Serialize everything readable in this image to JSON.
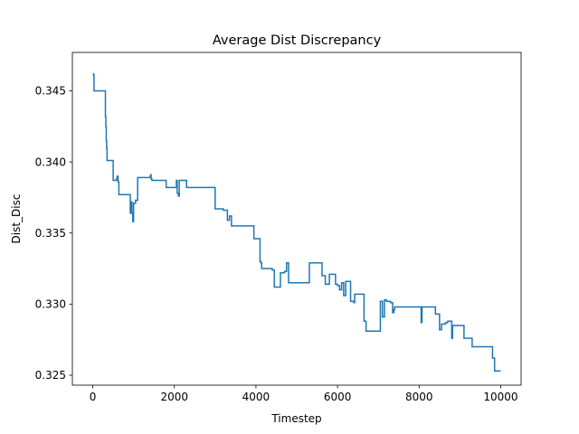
{
  "chart_data": {
    "type": "line",
    "title": "Average Dist Discrepancy",
    "xlabel": "Timestep",
    "ylabel": "Dist_Disc",
    "xlim": [
      -500,
      10500
    ],
    "ylim": [
      0.3243,
      0.3477
    ],
    "xticks": [
      0,
      2000,
      4000,
      6000,
      8000,
      10000
    ],
    "xtick_labels": [
      "0",
      "2000",
      "4000",
      "6000",
      "8000",
      "10000"
    ],
    "yticks": [
      0.325,
      0.33,
      0.335,
      0.34,
      0.345
    ],
    "ytick_labels": [
      "0.325",
      "0.330",
      "0.335",
      "0.340",
      "0.345"
    ],
    "grid": false,
    "line_color": "#1f77b4",
    "series": [
      {
        "step": "post",
        "x": [
          0,
          20,
          30,
          300,
          310,
          320,
          330,
          340,
          350,
          500,
          580,
          600,
          620,
          640,
          920,
          940,
          960,
          980,
          1000,
          1050,
          1100,
          1400,
          1410,
          1420,
          1430,
          1450,
          1800,
          2000,
          2050,
          2070,
          2100,
          2120,
          2150,
          2300,
          3000,
          3200,
          3280,
          3300,
          3350,
          3400,
          3950,
          4100,
          4120,
          4140,
          4400,
          4450,
          4600,
          4700,
          4750,
          4800,
          5300,
          5310,
          5600,
          5620,
          5700,
          5800,
          5950,
          6000,
          6050,
          6100,
          6150,
          6200,
          6300,
          6320,
          6400,
          6420,
          6520,
          6650,
          6700,
          6750,
          7000,
          7050,
          7100,
          7150,
          7200,
          7300,
          7350,
          7380,
          7400,
          7420,
          8000,
          8050,
          8070,
          8100,
          8400,
          8500,
          8550,
          8650,
          8700,
          8800,
          8820,
          8900,
          9100,
          9300,
          9700,
          9800,
          9850,
          10000
        ],
        "values": [
          0.3462,
          0.3461,
          0.345,
          0.345,
          0.3432,
          0.3425,
          0.3415,
          0.341,
          0.3401,
          0.3387,
          0.3388,
          0.339,
          0.3386,
          0.3377,
          0.3364,
          0.3372,
          0.3364,
          0.3358,
          0.3371,
          0.3373,
          0.3389,
          0.3389,
          0.339,
          0.3391,
          0.3388,
          0.3387,
          0.3382,
          0.3382,
          0.3387,
          0.3378,
          0.3376,
          0.3387,
          0.3387,
          0.3382,
          0.3367,
          0.3366,
          0.3366,
          0.3359,
          0.3362,
          0.3355,
          0.3346,
          0.333,
          0.3329,
          0.3325,
          0.3324,
          0.3312,
          0.3322,
          0.3323,
          0.3329,
          0.3315,
          0.3315,
          0.3329,
          0.3329,
          0.332,
          0.3314,
          0.3321,
          0.3314,
          0.3313,
          0.331,
          0.3315,
          0.3306,
          0.3316,
          0.3316,
          0.3302,
          0.3301,
          0.3307,
          0.3307,
          0.3288,
          0.3281,
          0.3281,
          0.3281,
          0.3302,
          0.3291,
          0.3303,
          0.3302,
          0.3301,
          0.3294,
          0.3296,
          0.3298,
          0.3298,
          0.3298,
          0.3287,
          0.3298,
          0.3298,
          0.3293,
          0.3282,
          0.3286,
          0.3287,
          0.3288,
          0.3276,
          0.3285,
          0.3285,
          0.3276,
          0.327,
          0.327,
          0.3262,
          0.3253,
          0.3253
        ]
      }
    ]
  }
}
